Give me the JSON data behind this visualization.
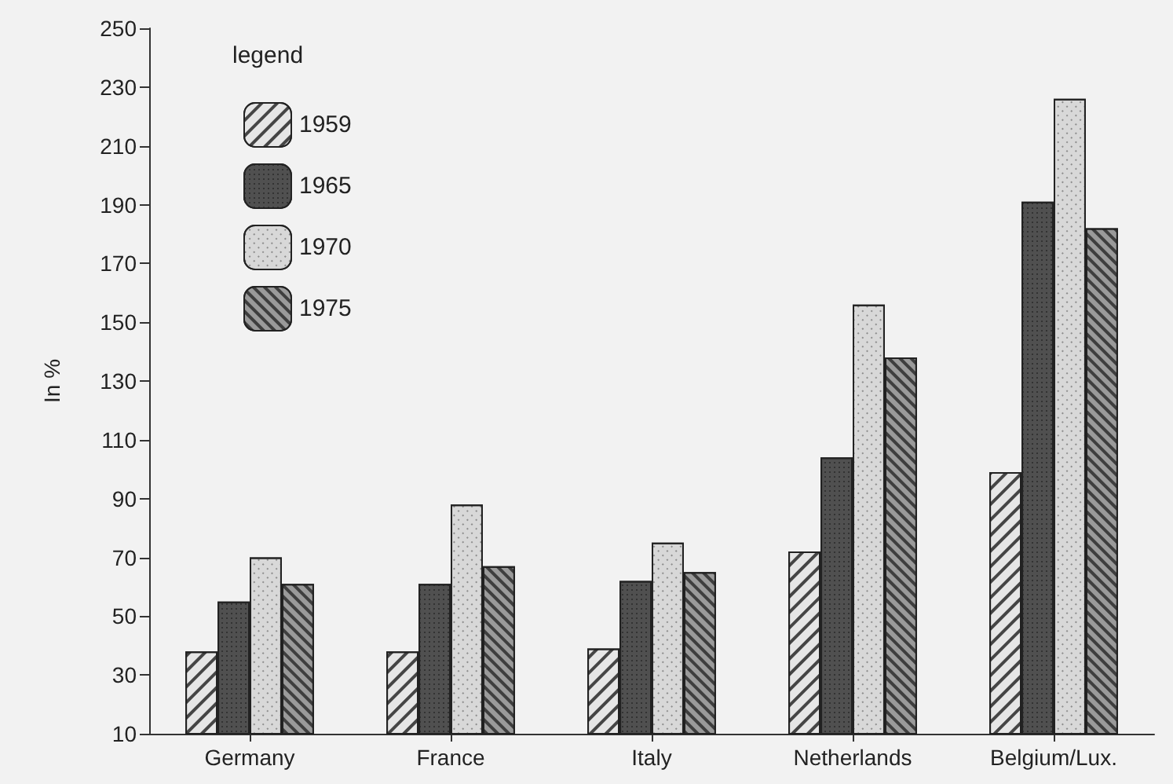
{
  "chart_data": {
    "type": "bar",
    "ylabel": "In %",
    "legend_title": "legend",
    "categories": [
      "Germany",
      "France",
      "Italy",
      "Netherlands",
      "Belgium/Lux."
    ],
    "series": [
      {
        "name": "1959",
        "color": "#e6e6e6",
        "values": [
          38,
          38,
          39,
          72,
          99
        ]
      },
      {
        "name": "1965",
        "color": "#505050",
        "values": [
          55,
          61,
          62,
          104,
          191
        ]
      },
      {
        "name": "1970",
        "color": "#d8d8d8",
        "values": [
          70,
          88,
          75,
          156,
          226
        ]
      },
      {
        "name": "1975",
        "color": "#9a9a9a",
        "values": [
          61,
          67,
          65,
          138,
          182
        ]
      }
    ],
    "ylim": [
      10,
      250
    ],
    "yticks": [
      10,
      30,
      50,
      70,
      90,
      110,
      130,
      150,
      170,
      190,
      210,
      230,
      250
    ],
    "grid": false,
    "legend": "top left"
  }
}
